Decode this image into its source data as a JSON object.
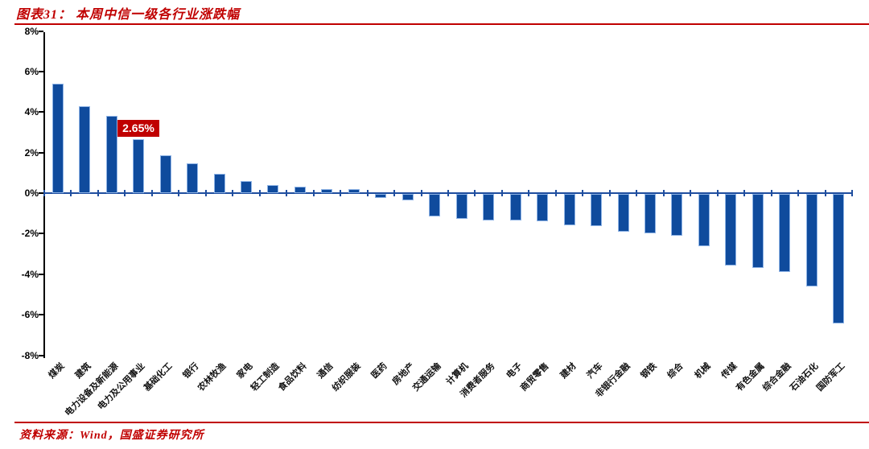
{
  "figure": {
    "title": "图表31：  本周中信一级各行业涨跌幅",
    "source": "资料来源：Wind，国盛证券研究所"
  },
  "colors": {
    "accent_red": "#c00000",
    "bar_blue": "#0f4b9d",
    "bar_edge_blue": "#8fb4e6",
    "axis_black": "#000000",
    "zero_axis_blue": "#1f4e9f"
  },
  "chart_data": {
    "type": "bar",
    "title": "本周中信一级各行业涨跌幅",
    "xlabel": "",
    "ylabel": "",
    "ylim": [
      -8,
      8
    ],
    "grid": false,
    "legend": null,
    "yticks": [
      "8%",
      "6%",
      "4%",
      "2%",
      "0%",
      "-2%",
      "-4%",
      "-6%",
      "-8%"
    ],
    "ytick_values": [
      8,
      6,
      4,
      2,
      0,
      -2,
      -4,
      -6,
      -8
    ],
    "categories": [
      "煤炭",
      "建筑",
      "电力设备及新能源",
      "电力及公用事业",
      "基础化工",
      "银行",
      "农林牧渔",
      "家电",
      "轻工制造",
      "食品饮料",
      "通信",
      "纺织服装",
      "医药",
      "房地产",
      "交通运输",
      "计算机",
      "消费者服务",
      "电子",
      "商贸零售",
      "建材",
      "汽车",
      "非银行金融",
      "钢铁",
      "综合",
      "机械",
      "传媒",
      "有色金属",
      "综合金融",
      "石油石化",
      "国防军工"
    ],
    "values": [
      5.4,
      4.3,
      3.8,
      2.65,
      1.85,
      1.45,
      0.95,
      0.6,
      0.4,
      0.3,
      0.2,
      0.2,
      -0.2,
      -0.3,
      -1.1,
      -1.25,
      -1.3,
      -1.3,
      -1.35,
      -1.55,
      -1.6,
      -1.85,
      -1.95,
      -2.05,
      -2.6,
      -3.55,
      -3.65,
      -3.85,
      -4.55,
      -6.4
    ],
    "annotation": {
      "category": "电力及公用事业",
      "index": 3,
      "text": "2.65%"
    }
  }
}
